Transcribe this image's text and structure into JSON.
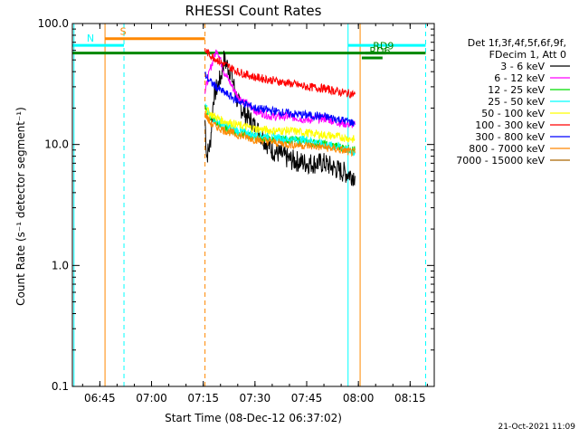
{
  "chart_data": {
    "type": "line",
    "title": "RHESSI Count Rates",
    "xlabel": "Start Time (08-Dec-12 06:37:02)",
    "ylabel": "Count Rate (s⁻¹ detector segment⁻¹)",
    "ylog": true,
    "ylim": [
      0.1,
      100
    ],
    "xlim": [
      "06:37:02",
      "08:22:00"
    ],
    "x_ticks": [
      "06:45",
      "07:00",
      "07:15",
      "07:30",
      "07:45",
      "08:00",
      "08:15"
    ],
    "y_ticks": [
      "0.1",
      "1.0",
      "10.0",
      "100.0"
    ],
    "legend_header": [
      "Det 1f,3f,4f,5f,6f,9f,",
      "FDecim 1, Att 0"
    ],
    "legend_position": "right",
    "series": [
      {
        "name": "3 - 6 keV",
        "color": "#000000",
        "points": [
          [
            "07:15:30",
            16
          ],
          [
            "07:16:00",
            8
          ],
          [
            "07:17:00",
            10
          ],
          [
            "07:18:00",
            25
          ],
          [
            "07:20:00",
            35
          ],
          [
            "07:21:00",
            50
          ],
          [
            "07:23:00",
            40
          ],
          [
            "07:25:00",
            22
          ],
          [
            "07:30:00",
            14
          ],
          [
            "07:35:00",
            9
          ],
          [
            "07:40:00",
            7.5
          ],
          [
            "07:45:00",
            7
          ],
          [
            "07:50:00",
            7
          ],
          [
            "07:55:00",
            6
          ],
          [
            "07:59:00",
            5.5
          ]
        ]
      },
      {
        "name": "6 - 12 keV",
        "color": "#ff00ff",
        "points": [
          [
            "07:15:30",
            27
          ],
          [
            "07:17:00",
            42
          ],
          [
            "07:19:00",
            62
          ],
          [
            "07:21:00",
            40
          ],
          [
            "07:25:00",
            25
          ],
          [
            "07:30:00",
            19
          ],
          [
            "07:35:00",
            17
          ],
          [
            "07:40:00",
            17
          ],
          [
            "07:45:00",
            16
          ],
          [
            "07:50:00",
            16.5
          ],
          [
            "07:55:00",
            15
          ],
          [
            "07:59:00",
            14.5
          ]
        ]
      },
      {
        "name": "12 - 25 keV",
        "color": "#00dd00",
        "points": [
          [
            "07:15:30",
            20
          ],
          [
            "07:17:00",
            17
          ],
          [
            "07:20:00",
            14
          ],
          [
            "07:25:00",
            12.5
          ],
          [
            "07:30:00",
            11.5
          ],
          [
            "07:35:00",
            11
          ],
          [
            "07:40:00",
            11
          ],
          [
            "07:45:00",
            10.5
          ],
          [
            "07:50:00",
            10
          ],
          [
            "07:55:00",
            9.5
          ],
          [
            "07:59:00",
            9
          ]
        ]
      },
      {
        "name": "25 - 50 keV",
        "color": "#00ffff",
        "points": [
          [
            "07:15:30",
            21
          ],
          [
            "07:17:00",
            17
          ],
          [
            "07:20:00",
            15
          ],
          [
            "07:25:00",
            13
          ],
          [
            "07:30:00",
            12
          ],
          [
            "07:35:00",
            11.5
          ],
          [
            "07:40:00",
            11
          ],
          [
            "07:45:00",
            11
          ],
          [
            "07:50:00",
            10
          ],
          [
            "07:55:00",
            9.5
          ],
          [
            "07:59:00",
            8.5
          ]
        ]
      },
      {
        "name": "50 - 100 keV",
        "color": "#ffff00",
        "points": [
          [
            "07:15:30",
            20
          ],
          [
            "07:17:00",
            18
          ],
          [
            "07:20:00",
            16
          ],
          [
            "07:25:00",
            14.5
          ],
          [
            "07:30:00",
            13.5
          ],
          [
            "07:35:00",
            13
          ],
          [
            "07:40:00",
            13
          ],
          [
            "07:45:00",
            12.5
          ],
          [
            "07:50:00",
            12
          ],
          [
            "07:55:00",
            11.5
          ],
          [
            "07:59:00",
            11
          ]
        ]
      },
      {
        "name": "100 - 300 keV",
        "color": "#ff0000",
        "points": [
          [
            "07:15:30",
            60
          ],
          [
            "07:17:00",
            55
          ],
          [
            "07:20:00",
            48
          ],
          [
            "07:25:00",
            40
          ],
          [
            "07:30:00",
            36
          ],
          [
            "07:35:00",
            34
          ],
          [
            "07:40:00",
            32
          ],
          [
            "07:45:00",
            30
          ],
          [
            "07:50:00",
            29
          ],
          [
            "07:55:00",
            27
          ],
          [
            "07:59:00",
            26
          ]
        ]
      },
      {
        "name": "300 - 800 keV",
        "color": "#0000ff",
        "points": [
          [
            "07:15:30",
            38
          ],
          [
            "07:17:00",
            33
          ],
          [
            "07:20:00",
            28
          ],
          [
            "07:25:00",
            23
          ],
          [
            "07:30:00",
            20
          ],
          [
            "07:35:00",
            19
          ],
          [
            "07:40:00",
            18
          ],
          [
            "07:45:00",
            17.5
          ],
          [
            "07:50:00",
            17
          ],
          [
            "07:55:00",
            16
          ],
          [
            "07:59:00",
            15
          ]
        ]
      },
      {
        "name": "800 - 7000 keV",
        "color": "#ff8800",
        "points": [
          [
            "07:15:30",
            18
          ],
          [
            "07:17:00",
            15
          ],
          [
            "07:20:00",
            13.5
          ],
          [
            "07:25:00",
            12
          ],
          [
            "07:30:00",
            11
          ],
          [
            "07:35:00",
            10.5
          ],
          [
            "07:40:00",
            10
          ],
          [
            "07:45:00",
            9.8
          ],
          [
            "07:50:00",
            9.5
          ],
          [
            "07:55:00",
            9
          ],
          [
            "07:59:00",
            8.5
          ]
        ]
      },
      {
        "name": "7000 - 15000 keV",
        "color": "#aa6600",
        "points": []
      }
    ],
    "annotations": [
      {
        "label": "S",
        "color": "#ff8800",
        "y": 75,
        "x_start": "06:46:30",
        "x_end": "07:15:30"
      },
      {
        "label": "N",
        "color": "#00ffff",
        "y": 66,
        "x_start": "06:37:02",
        "x_end": "06:52:00"
      },
      {
        "label": "",
        "color": "#00ffff",
        "y": 66,
        "x_start": "07:57:00",
        "x_end": "08:19:30"
      },
      {
        "label": "",
        "color": "#008800",
        "y": 57,
        "x_start": "06:37:02",
        "x_end": "08:19:30"
      },
      {
        "label": "RD6",
        "color": "#008800",
        "y": 52,
        "x_start": "08:01:00",
        "x_end": "08:07:00"
      },
      {
        "label": "RD9",
        "color": "#008800",
        "y": 57,
        "x_start": "08:02:00",
        "x_end": "08:08:00"
      }
    ],
    "vlines": [
      {
        "x": "06:37:30",
        "color": "#00ffff",
        "style": "solid"
      },
      {
        "x": "06:46:30",
        "color": "#ff8800",
        "style": "solid"
      },
      {
        "x": "06:52:00",
        "color": "#00ffff",
        "style": "dashed"
      },
      {
        "x": "07:15:30",
        "color": "#ff8800",
        "style": "dashed"
      },
      {
        "x": "07:57:00",
        "color": "#00ffff",
        "style": "solid"
      },
      {
        "x": "08:00:30",
        "color": "#ff8800",
        "style": "solid"
      },
      {
        "x": "08:19:30",
        "color": "#00ffff",
        "style": "dashed"
      }
    ]
  },
  "footer": {
    "timestamp": "21-Oct-2021 11:09"
  }
}
